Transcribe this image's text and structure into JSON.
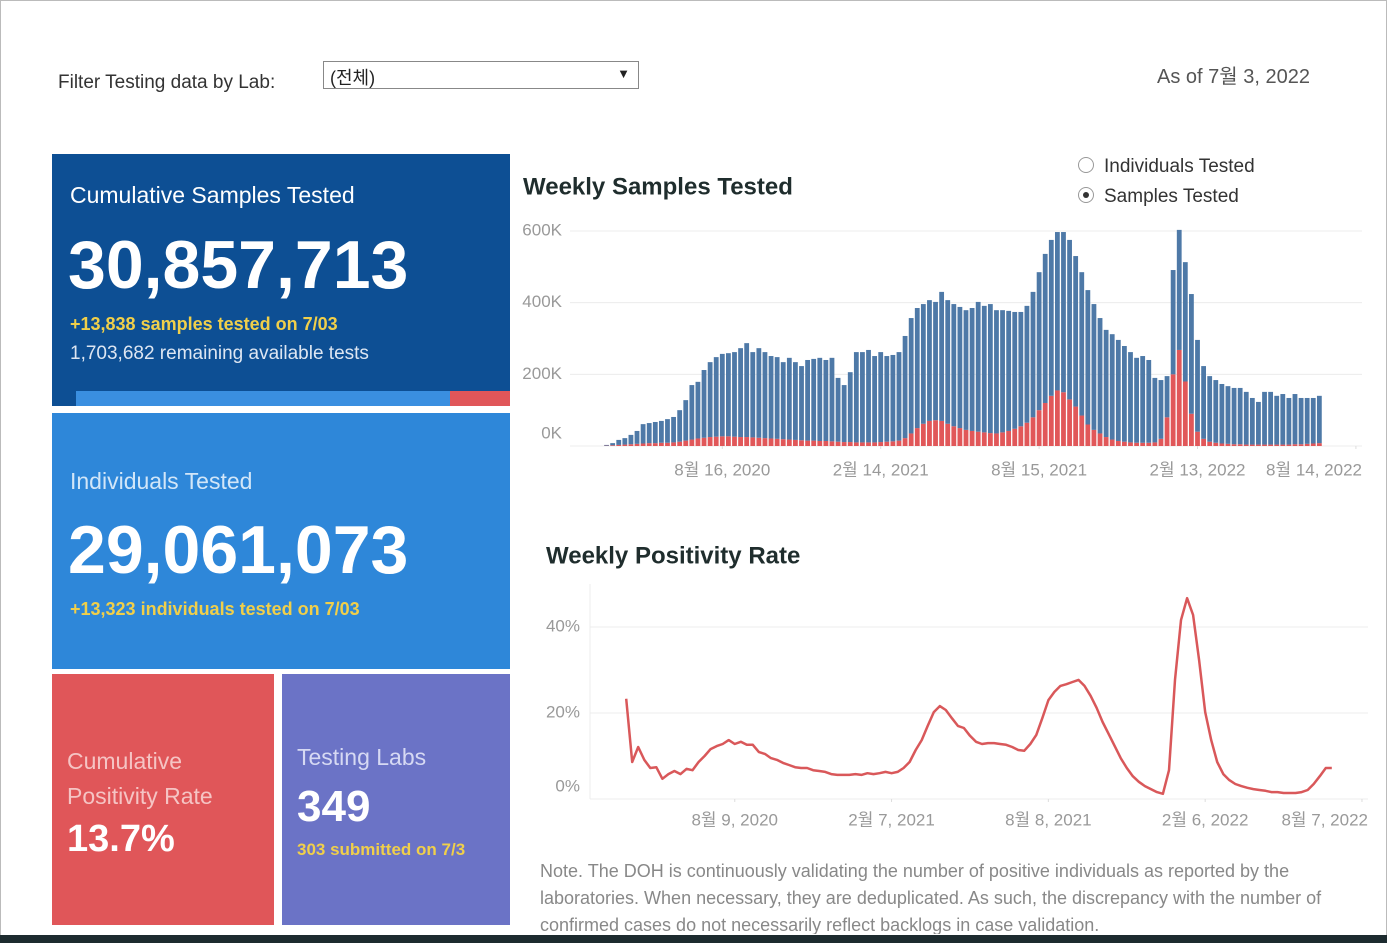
{
  "filter": {
    "label": "Filter Testing data by Lab:",
    "value": "(전체)"
  },
  "as_of": "As of 7월 3, 2022",
  "cards": [
    {
      "title": "Cumulative Samples Tested",
      "value": "30,857,713",
      "detail": "+13,838 samples tested on 7/03",
      "sub": "1,703,682 remaining available tests"
    },
    {
      "title": "Individuals Tested",
      "value": "29,061,073",
      "detail": "+13,323  individuals  tested on 7/03"
    },
    {
      "title": "Cumulative Positivity Rate",
      "value": "13.7%"
    },
    {
      "title": "Testing Labs",
      "value": "349",
      "detail": "303 submitted on 7/3"
    }
  ],
  "toggle": {
    "options": [
      "Individuals Tested",
      "Samples Tested"
    ],
    "selected": 1
  },
  "chart_data": [
    {
      "type": "bar",
      "title": "Weekly Samples Tested",
      "stacked": true,
      "grid": true,
      "x": [
        "2020-04-05",
        "2020-04-12",
        "2020-04-19",
        "2020-04-26",
        "2020-05-03",
        "2020-05-10",
        "2020-05-17",
        "2020-05-24",
        "2020-05-31",
        "2020-06-07",
        "2020-06-14",
        "2020-06-21",
        "2020-06-28",
        "2020-07-05",
        "2020-07-12",
        "2020-07-19",
        "2020-07-26",
        "2020-08-02",
        "2020-08-09",
        "2020-08-16",
        "2020-08-23",
        "2020-08-30",
        "2020-09-06",
        "2020-09-13",
        "2020-09-20",
        "2020-09-27",
        "2020-10-04",
        "2020-10-11",
        "2020-10-18",
        "2020-10-25",
        "2020-11-01",
        "2020-11-08",
        "2020-11-15",
        "2020-11-22",
        "2020-11-29",
        "2020-12-06",
        "2020-12-13",
        "2020-12-20",
        "2020-12-27",
        "2021-01-03",
        "2021-01-10",
        "2021-01-17",
        "2021-01-24",
        "2021-01-31",
        "2021-02-07",
        "2021-02-14",
        "2021-02-21",
        "2021-02-28",
        "2021-03-07",
        "2021-03-14",
        "2021-03-21",
        "2021-03-28",
        "2021-04-04",
        "2021-04-11",
        "2021-04-18",
        "2021-04-25",
        "2021-05-02",
        "2021-05-09",
        "2021-05-16",
        "2021-05-23",
        "2021-05-30",
        "2021-06-06",
        "2021-06-13",
        "2021-06-20",
        "2021-06-27",
        "2021-07-04",
        "2021-07-11",
        "2021-07-18",
        "2021-07-25",
        "2021-08-01",
        "2021-08-08",
        "2021-08-15",
        "2021-08-22",
        "2021-08-29",
        "2021-09-05",
        "2021-09-12",
        "2021-09-19",
        "2021-09-26",
        "2021-10-03",
        "2021-10-10",
        "2021-10-17",
        "2021-10-24",
        "2021-10-31",
        "2021-11-07",
        "2021-11-14",
        "2021-11-21",
        "2021-11-28",
        "2021-12-05",
        "2021-12-12",
        "2021-12-19",
        "2021-12-26",
        "2022-01-02",
        "2022-01-09",
        "2022-01-16",
        "2022-01-23",
        "2022-01-30",
        "2022-02-06",
        "2022-02-13",
        "2022-02-20",
        "2022-02-27",
        "2022-03-06",
        "2022-03-13",
        "2022-03-20",
        "2022-03-27",
        "2022-04-03",
        "2022-04-10",
        "2022-04-17",
        "2022-04-24",
        "2022-05-01",
        "2022-05-08",
        "2022-05-15",
        "2022-05-22",
        "2022-05-29",
        "2022-06-05",
        "2022-06-12",
        "2022-06-19",
        "2022-06-26",
        "2022-07-03"
      ],
      "series": [
        {
          "color": "#e15759",
          "values": [
            1000,
            2000,
            3000,
            4000,
            5000,
            6000,
            7000,
            8000,
            8000,
            9000,
            9000,
            10000,
            12000,
            15000,
            18000,
            21000,
            23000,
            25000,
            26000,
            27000,
            27000,
            26000,
            25000,
            25000,
            24000,
            23000,
            22000,
            21000,
            20000,
            19000,
            18000,
            17000,
            16000,
            15000,
            15000,
            14000,
            14000,
            13000,
            12000,
            11000,
            11000,
            10000,
            10000,
            10000,
            10000,
            11000,
            12000,
            13000,
            15000,
            22000,
            35000,
            50000,
            62000,
            70000,
            72000,
            70000,
            62000,
            55000,
            50000,
            45000,
            42000,
            40000,
            38000,
            36000,
            35000,
            38000,
            42000,
            48000,
            55000,
            65000,
            80000,
            100000,
            120000,
            140000,
            155000,
            150000,
            130000,
            110000,
            85000,
            60000,
            45000,
            35000,
            25000,
            18000,
            14000,
            12000,
            10000,
            9000,
            9000,
            9000,
            10000,
            20000,
            80000,
            200000,
            268000,
            180000,
            90000,
            40000,
            20000,
            12000,
            9000,
            7000,
            6000,
            5000,
            5000,
            4000,
            4000,
            4000,
            4000,
            4000,
            4000,
            4000,
            4000,
            5000,
            5000,
            6000,
            7000,
            8000
          ]
        },
        {
          "color": "#4e79a7",
          "values": [
            2000,
            6000,
            14000,
            18000,
            26000,
            36000,
            54000,
            56000,
            59000,
            61000,
            66000,
            71000,
            88000,
            113000,
            152000,
            158000,
            189000,
            209000,
            222000,
            230000,
            232000,
            236000,
            248000,
            262000,
            238000,
            250000,
            240000,
            230000,
            228000,
            215000,
            228000,
            217000,
            207000,
            225000,
            228000,
            232000,
            226000,
            233000,
            178000,
            159000,
            195000,
            252000,
            252000,
            258000,
            241000,
            251000,
            239000,
            241000,
            247000,
            285000,
            322000,
            335000,
            334000,
            337000,
            330000,
            360000,
            345000,
            341000,
            338000,
            334000,
            343000,
            362000,
            353000,
            360000,
            344000,
            341000,
            335000,
            326000,
            319000,
            326000,
            350000,
            385000,
            416000,
            435000,
            442000,
            447000,
            445000,
            420000,
            400000,
            375000,
            351000,
            322000,
            299000,
            294000,
            282000,
            267000,
            252000,
            237000,
            242000,
            231000,
            180000,
            164000,
            115000,
            291000,
            335000,
            333000,
            334000,
            256000,
            203000,
            183000,
            175000,
            166000,
            161000,
            157000,
            157000,
            147000,
            130000,
            119000,
            147000,
            147000,
            136000,
            141000,
            130000,
            140000,
            129000,
            128000,
            127000,
            132000
          ]
        }
      ],
      "xlim": [
        "2020-02-23",
        "2022-08-21"
      ],
      "xticks": [
        {
          "value": "2020-08-16",
          "label": "8월 16, 2020"
        },
        {
          "value": "2021-02-14",
          "label": "2월 14, 2021"
        },
        {
          "value": "2021-08-15",
          "label": "8월 15, 2021"
        },
        {
          "value": "2022-02-13",
          "label": "2월 13, 2022"
        },
        {
          "value": "2022-08-14",
          "label": "8월 14, 2022"
        }
      ],
      "ylim": [
        0,
        625000
      ],
      "yticks": [
        {
          "value": 0,
          "label": "0K"
        },
        {
          "value": 200000,
          "label": "200K"
        },
        {
          "value": 400000,
          "label": "400K"
        },
        {
          "value": 600000,
          "label": "600K"
        }
      ]
    },
    {
      "type": "line",
      "title": "Weekly Positivity Rate",
      "color": "#d9585a",
      "grid": true,
      "x": [
        "2020-04-05",
        "2020-04-12",
        "2020-04-19",
        "2020-04-26",
        "2020-05-03",
        "2020-05-10",
        "2020-05-17",
        "2020-05-24",
        "2020-05-31",
        "2020-06-07",
        "2020-06-14",
        "2020-06-21",
        "2020-06-28",
        "2020-07-05",
        "2020-07-12",
        "2020-07-19",
        "2020-07-26",
        "2020-08-02",
        "2020-08-09",
        "2020-08-16",
        "2020-08-23",
        "2020-08-30",
        "2020-09-06",
        "2020-09-13",
        "2020-09-20",
        "2020-09-27",
        "2020-10-04",
        "2020-10-11",
        "2020-10-18",
        "2020-10-25",
        "2020-11-01",
        "2020-11-08",
        "2020-11-15",
        "2020-11-22",
        "2020-11-29",
        "2020-12-06",
        "2020-12-13",
        "2020-12-20",
        "2020-12-27",
        "2021-01-03",
        "2021-01-10",
        "2021-01-17",
        "2021-01-24",
        "2021-01-31",
        "2021-02-07",
        "2021-02-14",
        "2021-02-21",
        "2021-02-28",
        "2021-03-07",
        "2021-03-14",
        "2021-03-21",
        "2021-03-28",
        "2021-04-04",
        "2021-04-11",
        "2021-04-18",
        "2021-04-25",
        "2021-05-02",
        "2021-05-09",
        "2021-05-16",
        "2021-05-23",
        "2021-05-30",
        "2021-06-06",
        "2021-06-13",
        "2021-06-20",
        "2021-06-27",
        "2021-07-04",
        "2021-07-11",
        "2021-07-18",
        "2021-07-25",
        "2021-08-01",
        "2021-08-08",
        "2021-08-15",
        "2021-08-22",
        "2021-08-29",
        "2021-09-05",
        "2021-09-12",
        "2021-09-19",
        "2021-09-26",
        "2021-10-03",
        "2021-10-10",
        "2021-10-17",
        "2021-10-24",
        "2021-10-31",
        "2021-11-07",
        "2021-11-14",
        "2021-11-21",
        "2021-11-28",
        "2021-12-05",
        "2021-12-12",
        "2021-12-19",
        "2021-12-26",
        "2022-01-02",
        "2022-01-09",
        "2022-01-16",
        "2022-01-23",
        "2022-01-30",
        "2022-02-06",
        "2022-02-13",
        "2022-02-20",
        "2022-02-27",
        "2022-03-06",
        "2022-03-13",
        "2022-03-20",
        "2022-03-27",
        "2022-04-03",
        "2022-04-10",
        "2022-04-17",
        "2022-04-24",
        "2022-05-01",
        "2022-05-08",
        "2022-05-15",
        "2022-05-22",
        "2022-05-29",
        "2022-06-05",
        "2022-06-12",
        "2022-06-19",
        "2022-06-26",
        "2022-07-03"
      ],
      "values": [
        23.3,
        8.6,
        12.1,
        9.1,
        7.2,
        7.4,
        4.7,
        5.8,
        6.5,
        5.8,
        7.0,
        6.7,
        8.6,
        10.0,
        11.6,
        12.3,
        12.8,
        13.7,
        12.8,
        13.3,
        12.6,
        12.6,
        10.9,
        10.5,
        9.5,
        9.1,
        8.4,
        7.9,
        7.4,
        7.2,
        7.2,
        6.7,
        6.5,
        6.3,
        5.8,
        5.6,
        5.6,
        5.6,
        5.8,
        5.6,
        6.0,
        5.8,
        6.0,
        6.3,
        6.0,
        6.3,
        7.2,
        8.6,
        11.4,
        13.7,
        17.0,
        20.2,
        21.6,
        20.7,
        18.8,
        17.0,
        16.5,
        14.7,
        13.3,
        12.8,
        13.0,
        13.0,
        12.8,
        12.6,
        12.1,
        11.4,
        11.2,
        12.8,
        14.9,
        18.8,
        23.0,
        24.9,
        26.3,
        26.7,
        27.2,
        27.7,
        26.3,
        24.0,
        21.2,
        17.9,
        15.1,
        12.3,
        9.5,
        7.2,
        5.3,
        4.0,
        3.0,
        2.3,
        1.6,
        1.2,
        6.7,
        27.7,
        41.6,
        46.7,
        42.8,
        32.3,
        20.2,
        13.7,
        8.6,
        5.8,
        4.4,
        3.5,
        3.0,
        2.6,
        2.3,
        2.1,
        1.9,
        1.6,
        1.6,
        1.4,
        1.4,
        1.4,
        1.6,
        2.1,
        3.5,
        5.3,
        7.2,
        7.2
      ],
      "xlim": [
        "2020-02-23",
        "2022-08-14"
      ],
      "xticks": [
        {
          "value": "2020-08-09",
          "label": "8월 9, 2020"
        },
        {
          "value": "2021-02-07",
          "label": "2월 7, 2021"
        },
        {
          "value": "2021-08-08",
          "label": "8월 8, 2021"
        },
        {
          "value": "2022-02-06",
          "label": "2월 6, 2022"
        },
        {
          "value": "2022-08-07",
          "label": "8월 7, 2022"
        }
      ],
      "ylim": [
        0,
        50
      ],
      "yticks": [
        {
          "value": 0,
          "label": "0%"
        },
        {
          "value": 20,
          "label": "20%"
        },
        {
          "value": 40,
          "label": "40%"
        }
      ]
    }
  ],
  "note": "Note. The DOH is continuously validating the number of positive individuals as reported by the laboratories. When necessary, they are deduplicated. As such, the discrepancy with the number of confirmed cases do not necessarily reflect backlogs in case validation."
}
